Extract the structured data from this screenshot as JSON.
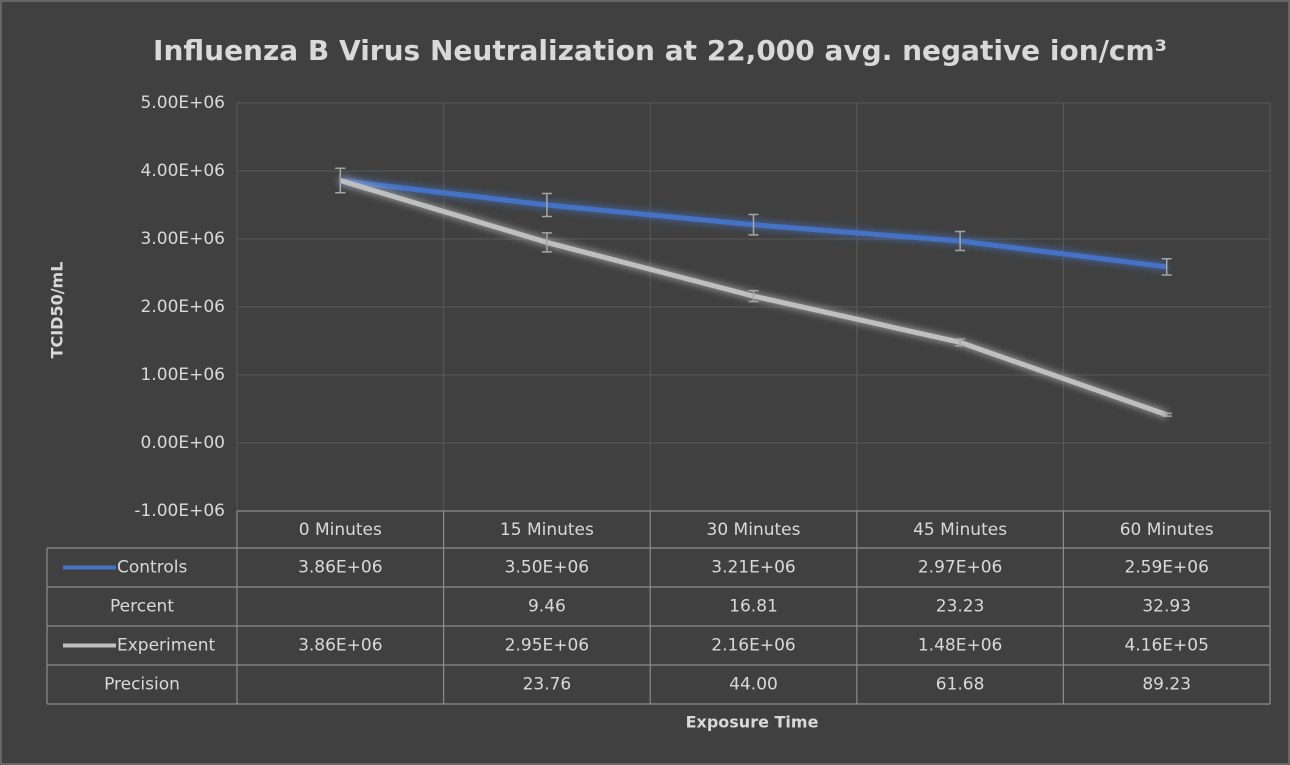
{
  "chart_data": {
    "type": "line",
    "title": "Influenza B Virus Neutralization at 22,000 avg. negative ion/cm³",
    "y_label": "TCID50/mL",
    "x_label": "Exposure Time",
    "categories": [
      "0 Minutes",
      "15 Minutes",
      "30 Minutes",
      "45 Minutes",
      "60 Minutes"
    ],
    "series": [
      {
        "name": "Controls",
        "color": "#4472c4",
        "values": [
          3860000,
          3500000,
          3210000,
          2970000,
          2590000
        ],
        "value_labels": [
          "3.86E+06",
          "3.50E+06",
          "3.21E+06",
          "2.97E+06",
          "2.59E+06"
        ],
        "errors": [
          180000,
          170000,
          150000,
          140000,
          120000
        ]
      },
      {
        "name": "Experiment",
        "color": "#bfbfbf",
        "values": [
          3860000,
          2950000,
          2160000,
          1480000,
          416000
        ],
        "value_labels": [
          "3.86E+06",
          "2.95E+06",
          "2.16E+06",
          "1.48E+06",
          "4.16E+05"
        ],
        "errors": [
          180000,
          140000,
          80000,
          50000,
          20000
        ]
      }
    ],
    "table_rows": [
      {
        "name": "Percent",
        "values": [
          null,
          9.46,
          16.81,
          23.23,
          32.93
        ],
        "value_labels": [
          null,
          "9.46",
          "16.81",
          "23.23",
          "32.93"
        ]
      },
      {
        "name": "Precision",
        "values": [
          null,
          23.76,
          44.0,
          61.68,
          89.23
        ],
        "value_labels": [
          null,
          "23.76",
          "44.00",
          "61.68",
          "89.23"
        ]
      }
    ],
    "ylim": [
      -1000000,
      5000000
    ],
    "yticks": [
      {
        "value": -1000000,
        "label": "-1.00E+06"
      },
      {
        "value": 0,
        "label": "0.00E+00"
      },
      {
        "value": 1000000,
        "label": "1.00E+06"
      },
      {
        "value": 2000000,
        "label": "2.00E+06"
      },
      {
        "value": 3000000,
        "label": "3.00E+06"
      },
      {
        "value": 4000000,
        "label": "4.00E+06"
      },
      {
        "value": 5000000,
        "label": "5.00E+06"
      }
    ],
    "grid": true
  }
}
